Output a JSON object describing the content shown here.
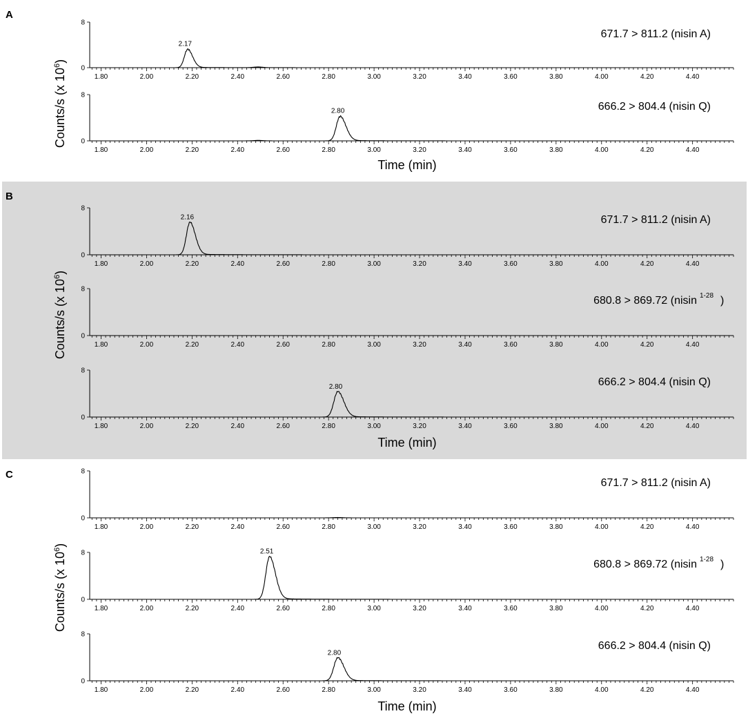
{
  "chart_data": {
    "type": "line",
    "xlabel": "Time (min)",
    "ylabel_prefix": "Counts/s (x 10",
    "ylabel_exponent": "6",
    "ylabel_suffix": ")",
    "xlim": [
      1.75,
      4.58
    ],
    "ylim": [
      0,
      8
    ],
    "y_tick_labels": [
      "0",
      "8"
    ],
    "x_tick_labels": [
      "1.80",
      "2.00",
      "2.20",
      "2.40",
      "2.60",
      "2.80",
      "3.00",
      "3.20",
      "3.40",
      "3.60",
      "3.80",
      "4.00",
      "4.20",
      "4.40"
    ],
    "panels": [
      {
        "letter": "A",
        "shaded": false,
        "traces": [
          {
            "transition": "671.7 > 811.2 (nisin A)",
            "transition_sup": "",
            "peak_label": "2.17",
            "peaks": [
              {
                "center": 2.18,
                "height": 3.2,
                "sigma_left": 0.014,
                "sigma_right": 0.022
              },
              {
                "center": 2.49,
                "height": 0.12,
                "sigma_left": 0.02,
                "sigma_right": 0.02
              }
            ]
          },
          {
            "transition": "666.2 > 804.4 (nisin Q)",
            "transition_sup": "",
            "peak_label": "2.80",
            "peaks": [
              {
                "center": 2.85,
                "height": 4.2,
                "sigma_left": 0.016,
                "sigma_right": 0.026
              },
              {
                "center": 2.49,
                "height": 0.08,
                "sigma_left": 0.02,
                "sigma_right": 0.02
              }
            ]
          }
        ]
      },
      {
        "letter": "B",
        "shaded": true,
        "traces": [
          {
            "transition": "671.7 > 811.2 (nisin A)",
            "transition_sup": "",
            "peak_label": "2.16",
            "peaks": [
              {
                "center": 2.19,
                "height": 5.5,
                "sigma_left": 0.015,
                "sigma_right": 0.024
              }
            ]
          },
          {
            "transition": "680.8 > 869.72 (nisin",
            "transition_sup": "1-28",
            "transition_close": ")",
            "peak_label": "",
            "peaks": []
          },
          {
            "transition": "666.2 > 804.4 (nisin Q)",
            "transition_sup": "",
            "peak_label": "2.80",
            "peaks": [
              {
                "center": 2.84,
                "height": 4.3,
                "sigma_left": 0.017,
                "sigma_right": 0.027
              }
            ]
          }
        ]
      },
      {
        "letter": "C",
        "shaded": false,
        "traces": [
          {
            "transition": "671.7 > 811.2 (nisin A)",
            "transition_sup": "",
            "peak_label": "",
            "peaks": [
              {
                "center": 2.84,
                "height": 0.06,
                "sigma_left": 0.02,
                "sigma_right": 0.02
              }
            ]
          },
          {
            "transition": "680.8 > 869.72 (nisin",
            "transition_sup": "1-28",
            "transition_close": ")",
            "peak_label": "2.51",
            "peaks": [
              {
                "center": 2.54,
                "height": 7.2,
                "sigma_left": 0.016,
                "sigma_right": 0.026
              }
            ]
          },
          {
            "transition": "666.2 > 804.4 (nisin Q)",
            "transition_sup": "",
            "peak_label": "2.80",
            "peaks": [
              {
                "center": 2.84,
                "height": 3.9,
                "sigma_left": 0.017,
                "sigma_right": 0.027
              }
            ]
          }
        ]
      }
    ]
  }
}
